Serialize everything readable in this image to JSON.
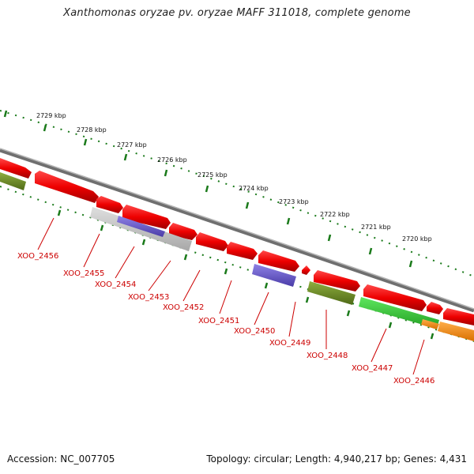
{
  "title": "Xanthomonas oryzae pv. oryzae MAFF 311018, complete genome",
  "footer": {
    "accession": "Accession: NC_007705",
    "summary": "Topology: circular; Length: 4,940,217 bp; Genes: 4,431"
  },
  "scale_labels": [
    "2729 kbp",
    "2728 kbp",
    "2727 kbp",
    "2726 kbp",
    "2725 kbp",
    "2724 kbp",
    "2723 kbp",
    "2722 kbp",
    "2721 kbp",
    "2720 kbp"
  ],
  "gene_labels": [
    "XOO_2456",
    "XOO_2455",
    "XOO_2454",
    "XOO_2453",
    "XOO_2452",
    "XOO_2451",
    "XOO_2450",
    "XOO_2449",
    "XOO_2448",
    "XOO_2447",
    "XOO_2446"
  ],
  "colors": {
    "gene_red": "#ee0000",
    "gene_olive": "#6b8e23",
    "gene_gray": "#c0c0c0",
    "gene_purple": "#6a5acd",
    "gene_green": "#32cd32",
    "gene_orange": "#ff8c00",
    "backbone": "#808080",
    "ticks": "#1a7a1a",
    "label": "#cc0000"
  }
}
